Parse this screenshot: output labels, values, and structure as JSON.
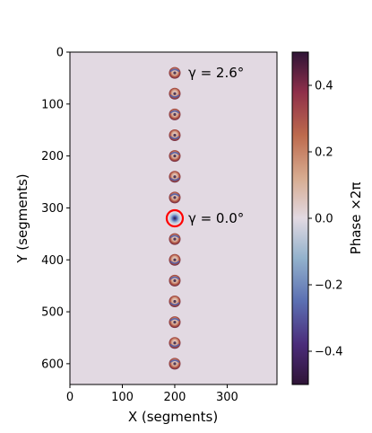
{
  "chart_data": {
    "type": "heatmap",
    "title": "",
    "xlabel": "X (segments)",
    "ylabel": "Y (segments)",
    "xlim": [
      0,
      395
    ],
    "ylim": [
      640,
      0
    ],
    "xticks": [
      0,
      100,
      200,
      300
    ],
    "yticks": [
      0,
      100,
      200,
      300,
      400,
      500,
      600
    ],
    "background_phase": 0.0,
    "spots": [
      {
        "x": 200,
        "y": 40
      },
      {
        "x": 200,
        "y": 80
      },
      {
        "x": 200,
        "y": 120
      },
      {
        "x": 200,
        "y": 160
      },
      {
        "x": 200,
        "y": 200
      },
      {
        "x": 200,
        "y": 240
      },
      {
        "x": 200,
        "y": 280
      },
      {
        "x": 200,
        "y": 320
      },
      {
        "x": 200,
        "y": 360
      },
      {
        "x": 200,
        "y": 400
      },
      {
        "x": 200,
        "y": 440
      },
      {
        "x": 200,
        "y": 480
      },
      {
        "x": 200,
        "y": 520
      },
      {
        "x": 200,
        "y": 560
      },
      {
        "x": 200,
        "y": 600
      }
    ],
    "highlighted_spot": {
      "x": 200,
      "y": 320,
      "color": "#ff0000"
    },
    "annotations": [
      {
        "text": "γ = 2.6°",
        "x": 200,
        "y": 40
      },
      {
        "text": "γ = 0.0°",
        "x": 200,
        "y": 320
      }
    ],
    "colorbar": {
      "label": "Phase ×2π",
      "range": [
        -0.5,
        0.5
      ],
      "ticks": [
        0.4,
        0.2,
        0.0,
        -0.2,
        -0.4
      ],
      "tick_labels": [
        "0.4",
        "0.2",
        "0.0",
        "−0.2",
        "−0.4"
      ],
      "colormap": "twilight_shifted"
    },
    "colors": {
      "background": "#e2d9e2",
      "warm": "#b5563a",
      "cool": "#3f5aa8",
      "dark": "#2e1538"
    }
  }
}
